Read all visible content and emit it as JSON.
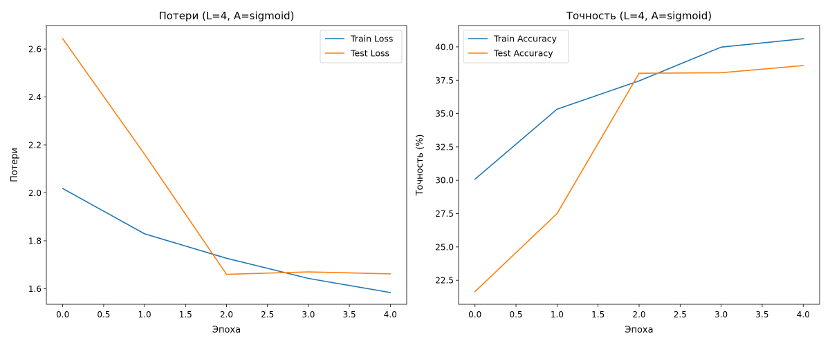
{
  "figure": {
    "background": "#ffffff"
  },
  "chart_data": [
    {
      "type": "line",
      "title": "Потери (L=4, A=sigmoid)",
      "xlabel": "Эпоха",
      "ylabel": "Потери",
      "xlim": [
        -0.2,
        4.2
      ],
      "ylim": [
        1.535,
        2.698
      ],
      "xticks": [
        0.0,
        0.5,
        1.0,
        1.5,
        2.0,
        2.5,
        3.0,
        3.5,
        4.0
      ],
      "xtick_labels": [
        "0.0",
        "0.5",
        "1.0",
        "1.5",
        "2.0",
        "2.5",
        "3.0",
        "3.5",
        "4.0"
      ],
      "yticks": [
        1.6,
        1.8,
        2.0,
        2.2,
        2.4,
        2.6
      ],
      "ytick_labels": [
        "1.6",
        "1.8",
        "2.0",
        "2.2",
        "2.4",
        "2.6"
      ],
      "grid": false,
      "legend": "top-right",
      "x": [
        0,
        1,
        2,
        3,
        4
      ],
      "series": [
        {
          "name": "Train Loss",
          "color": "#1f77b4",
          "values": [
            2.018,
            1.829,
            1.727,
            1.643,
            1.584
          ]
        },
        {
          "name": "Test Loss",
          "color": "#ff7f0e",
          "values": [
            2.643,
            2.161,
            1.66,
            1.67,
            1.662
          ]
        }
      ]
    },
    {
      "type": "line",
      "title": "Точность (L=4, A=sigmoid)",
      "xlabel": "Эпоха",
      "ylabel": "Точность (%)",
      "xlim": [
        -0.2,
        4.2
      ],
      "ylim": [
        20.7,
        41.6
      ],
      "xticks": [
        0.0,
        0.5,
        1.0,
        1.5,
        2.0,
        2.5,
        3.0,
        3.5,
        4.0
      ],
      "xtick_labels": [
        "0.0",
        "0.5",
        "1.0",
        "1.5",
        "2.0",
        "2.5",
        "3.0",
        "3.5",
        "4.0"
      ],
      "yticks": [
        22.5,
        25.0,
        27.5,
        30.0,
        32.5,
        35.0,
        37.5,
        40.0
      ],
      "ytick_labels": [
        "22.5",
        "25.0",
        "27.5",
        "30.0",
        "32.5",
        "35.0",
        "37.5",
        "40.0"
      ],
      "grid": false,
      "legend": "top-left",
      "x": [
        0,
        1,
        2,
        3,
        4
      ],
      "series": [
        {
          "name": "Train Accuracy",
          "color": "#1f77b4",
          "values": [
            30.08,
            35.33,
            37.45,
            39.98,
            40.61
          ]
        },
        {
          "name": "Test Accuracy",
          "color": "#ff7f0e",
          "values": [
            21.65,
            27.5,
            38.02,
            38.06,
            38.6
          ]
        }
      ]
    }
  ]
}
